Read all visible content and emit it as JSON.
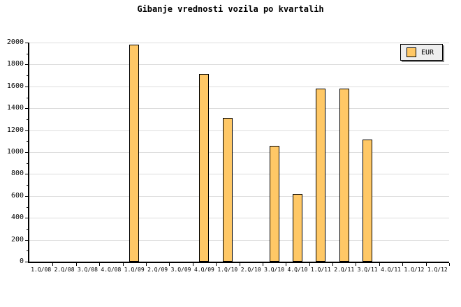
{
  "title": "Gibanje vrednosti vozila po kvartalih",
  "legend": {
    "label": "EUR",
    "background": "#EEEEEE",
    "shadow_color": "#888888"
  },
  "chart_data": {
    "type": "bar",
    "title": "Gibanje vrednosti vozila po kvartalih",
    "xlabel": "",
    "ylabel": "",
    "categories": [
      "1.Q/08",
      "2.Q/08",
      "3.Q/08",
      "4.Q/08",
      "1.Q/09",
      "2.Q/09",
      "3.Q/09",
      "4.Q/09",
      "1.Q/10",
      "2.Q/10",
      "3.Q/10",
      "4.Q/10",
      "1.Q/11",
      "2.Q/11",
      "3.Q/11",
      "4.Q/11",
      "1.Q/12",
      "1.Q/12"
    ],
    "series": [
      {
        "name": "EUR",
        "values": [
          null,
          null,
          null,
          null,
          1980,
          null,
          null,
          1715,
          1310,
          null,
          1055,
          620,
          1580,
          1580,
          1115,
          null,
          null,
          null
        ]
      }
    ],
    "ylim": [
      0,
      2000
    ],
    "ytick_labels": [
      "0",
      "200",
      "400",
      "600",
      "800",
      "1000",
      "1200",
      "1400",
      "1600",
      "1800",
      "2000"
    ],
    "ytick_major_step": 200,
    "ytick_minor_step": 100,
    "grid": "horizontal-major",
    "grid_color": "#DDDDDD",
    "legend_position": "top-right",
    "bar_color": "#FFC866",
    "bar_border_color": "#000000",
    "background": "#FFFFFF"
  }
}
